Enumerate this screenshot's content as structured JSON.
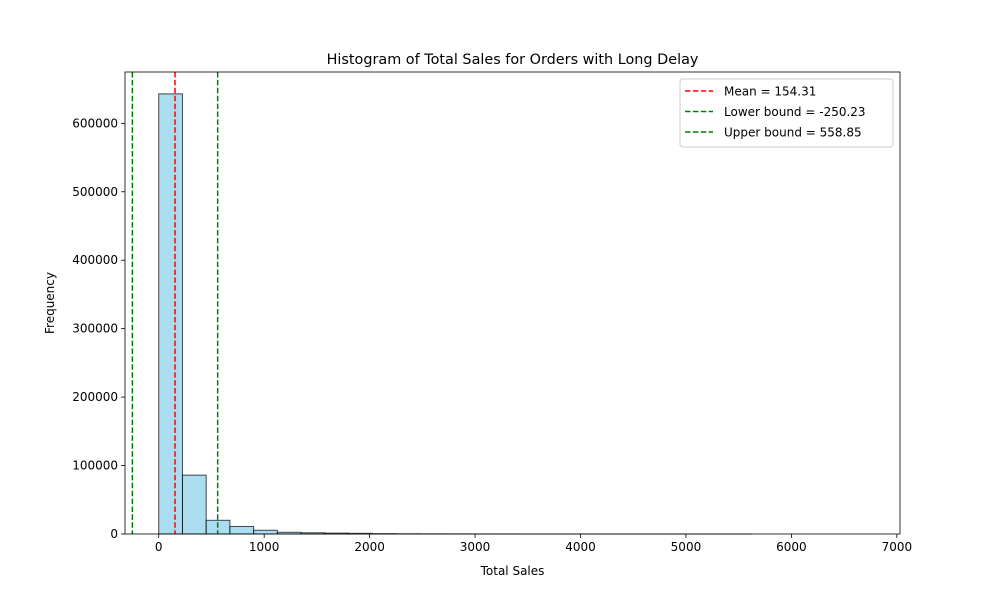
{
  "chart_data": {
    "type": "bar",
    "title": "Histogram of Total Sales for Orders with Long Delay",
    "xlabel": "Total Sales",
    "ylabel": "Frequency",
    "xlim": [
      -320,
      7030
    ],
    "ylim": [
      0,
      675000
    ],
    "xticks": [
      0,
      1000,
      2000,
      3000,
      4000,
      5000,
      6000,
      7000
    ],
    "yticks": [
      0,
      100000,
      200000,
      300000,
      400000,
      500000,
      600000
    ],
    "bin_width": 225,
    "bins": [
      {
        "x0": 0,
        "x1": 225,
        "count": 643000
      },
      {
        "x0": 225,
        "x1": 450,
        "count": 86000
      },
      {
        "x0": 450,
        "x1": 675,
        "count": 20000
      },
      {
        "x0": 675,
        "x1": 900,
        "count": 11000
      },
      {
        "x0": 900,
        "x1": 1125,
        "count": 5500
      },
      {
        "x0": 1125,
        "x1": 1350,
        "count": 2500
      },
      {
        "x0": 1350,
        "x1": 1575,
        "count": 1800
      },
      {
        "x0": 1575,
        "x1": 1800,
        "count": 1300
      },
      {
        "x0": 1800,
        "x1": 2025,
        "count": 1000
      },
      {
        "x0": 2025,
        "x1": 2250,
        "count": 500
      },
      {
        "x0": 2250,
        "x1": 2475,
        "count": 300
      },
      {
        "x0": 2475,
        "x1": 2700,
        "count": 200
      },
      {
        "x0": 2700,
        "x1": 2925,
        "count": 150
      },
      {
        "x0": 2925,
        "x1": 3150,
        "count": 100
      },
      {
        "x0": 3150,
        "x1": 3375,
        "count": 80
      },
      {
        "x0": 3375,
        "x1": 3600,
        "count": 60
      },
      {
        "x0": 3600,
        "x1": 3825,
        "count": 50
      },
      {
        "x0": 3825,
        "x1": 4050,
        "count": 40
      },
      {
        "x0": 4050,
        "x1": 4275,
        "count": 30
      },
      {
        "x0": 4275,
        "x1": 4500,
        "count": 25
      },
      {
        "x0": 4500,
        "x1": 4725,
        "count": 20
      },
      {
        "x0": 4725,
        "x1": 4950,
        "count": 15
      },
      {
        "x0": 4950,
        "x1": 5175,
        "count": 12
      },
      {
        "x0": 5175,
        "x1": 5400,
        "count": 10
      },
      {
        "x0": 5400,
        "x1": 5625,
        "count": 8
      },
      {
        "x0": 5625,
        "x1": 5850,
        "count": 6
      },
      {
        "x0": 5850,
        "x1": 6075,
        "count": 5
      },
      {
        "x0": 6075,
        "x1": 6300,
        "count": 4
      },
      {
        "x0": 6300,
        "x1": 6525,
        "count": 3
      },
      {
        "x0": 6525,
        "x1": 6750,
        "count": 2
      }
    ],
    "bar_color": "#87ceeb",
    "bar_edge_color": "#000000",
    "vlines": [
      {
        "name": "Mean = 154.31",
        "x": 154.31,
        "color": "#ff0000"
      },
      {
        "name": "Lower bound = -250.23",
        "x": -250.23,
        "color": "#008000"
      },
      {
        "name": "Upper bound = 558.85",
        "x": 558.85,
        "color": "#008000"
      }
    ],
    "legend_position": "top-right",
    "grid": false
  }
}
